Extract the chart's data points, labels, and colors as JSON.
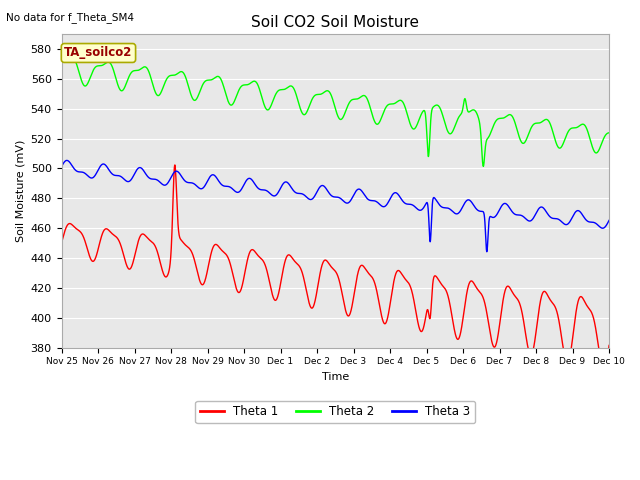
{
  "title": "Soil CO2 Soil Moisture",
  "ylabel": "Soil Moisture (mV)",
  "xlabel": "Time",
  "subtitle": "No data for f_Theta_SM4",
  "annotation": "TA_soilco2",
  "ylim": [
    380,
    590
  ],
  "yticks": [
    380,
    400,
    420,
    440,
    460,
    480,
    500,
    520,
    540,
    560,
    580
  ],
  "xtick_labels": [
    "Nov 25",
    "Nov 26",
    "Nov 27",
    "Nov 28",
    "Nov 29",
    "Nov 30",
    "Dec 1",
    "Dec 2",
    "Dec 3",
    "Dec 4",
    "Dec 5",
    "Dec 6",
    "Dec 7",
    "Dec 8",
    "Dec 9",
    "Dec 10"
  ],
  "colors": {
    "theta1": "#ff0000",
    "theta2": "#00ff00",
    "theta3": "#0000ff",
    "background": "#e8e8e8",
    "annotation_bg": "#ffffcc",
    "annotation_border": "#aaaa00"
  },
  "legend_labels": [
    "Theta 1",
    "Theta 2",
    "Theta 3"
  ]
}
